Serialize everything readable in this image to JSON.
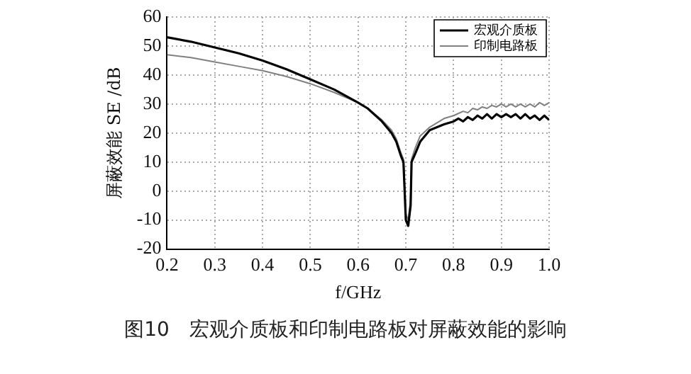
{
  "chart_data": {
    "type": "line",
    "xlabel": "f/GHz",
    "ylabel": "屏蔽效能 SE /dB",
    "xlim": [
      0.2,
      1.0
    ],
    "xticks": [
      {
        "value": 0.2,
        "label": "0.2"
      },
      {
        "value": 0.3,
        "label": "0.3"
      },
      {
        "value": 0.4,
        "label": "0.4"
      },
      {
        "value": 0.5,
        "label": "0.5"
      },
      {
        "value": 0.6,
        "label": "0.6"
      },
      {
        "value": 0.7,
        "label": "0.7"
      },
      {
        "value": 0.8,
        "label": "0.8"
      },
      {
        "value": 0.9,
        "label": "0.9"
      },
      {
        "value": 1.0,
        "label": "1.0"
      }
    ],
    "ylim": [
      -20,
      60
    ],
    "yticks": [
      -20,
      -10,
      0,
      10,
      20,
      30,
      40,
      50,
      60
    ],
    "grid": true,
    "legend": "top right",
    "line_style": "solid",
    "marker": "none",
    "annotations": [
      "图10　宏观介质板和印制电路板对屏蔽效能的影响"
    ],
    "series": [
      {
        "name": "宏观介质板",
        "color": "#000000",
        "x": [
          0.2,
          0.25,
          0.3,
          0.35,
          0.4,
          0.45,
          0.5,
          0.55,
          0.6,
          0.62,
          0.65,
          0.67,
          0.68,
          0.69,
          0.695,
          0.7,
          0.705,
          0.71,
          0.712,
          0.72,
          0.73,
          0.75,
          0.78,
          0.8,
          0.81,
          0.82,
          0.83,
          0.84,
          0.85,
          0.86,
          0.87,
          0.88,
          0.89,
          0.9,
          0.91,
          0.92,
          0.93,
          0.94,
          0.95,
          0.96,
          0.97,
          0.98,
          0.99,
          1.0
        ],
        "values": [
          53,
          51.5,
          49.5,
          47.5,
          45,
          42,
          38.5,
          35,
          30.5,
          28.5,
          24,
          20,
          17,
          12,
          10,
          -10,
          -12,
          -5,
          10,
          13,
          17,
          21,
          23,
          24,
          25,
          24,
          25.5,
          24.5,
          26,
          25,
          26.5,
          25,
          26.5,
          25.5,
          26.5,
          25.5,
          26.5,
          25,
          26.5,
          25,
          26,
          24.5,
          26,
          24.5
        ]
      },
      {
        "name": "印制电路板",
        "color": "#808080",
        "x": [
          0.2,
          0.25,
          0.3,
          0.35,
          0.4,
          0.45,
          0.5,
          0.55,
          0.6,
          0.62,
          0.65,
          0.67,
          0.68,
          0.69,
          0.695,
          0.7,
          0.705,
          0.71,
          0.712,
          0.72,
          0.73,
          0.75,
          0.78,
          0.8,
          0.82,
          0.83,
          0.84,
          0.85,
          0.86,
          0.87,
          0.88,
          0.89,
          0.9,
          0.91,
          0.92,
          0.93,
          0.94,
          0.95,
          0.96,
          0.97,
          0.98,
          0.99,
          1.0
        ],
        "values": [
          47,
          46,
          44.5,
          43,
          41.5,
          39.5,
          37,
          34,
          30.5,
          28.5,
          24.5,
          21,
          18,
          13,
          11,
          -8,
          -10,
          -3,
          11,
          15,
          19,
          22,
          25,
          26,
          27.5,
          27,
          28.5,
          28,
          29,
          28.5,
          29.5,
          29,
          30,
          29,
          30,
          29,
          30,
          29,
          30,
          29,
          30.5,
          29.5,
          30.5
        ]
      }
    ]
  }
}
